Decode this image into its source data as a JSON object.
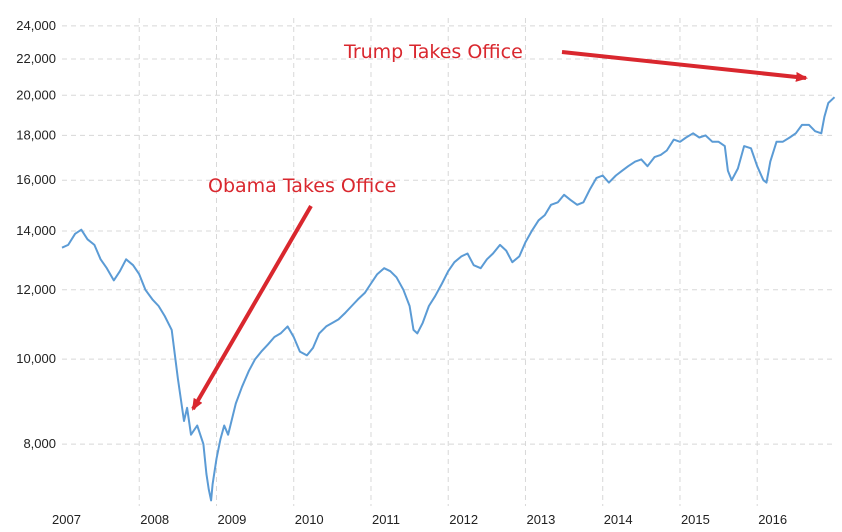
{
  "chart_data": {
    "type": "line",
    "y_scale": "log",
    "ylim": [
      6800,
      24500
    ],
    "xlim": [
      2007.0,
      2017.02
    ],
    "x_tick_labels": [
      "2007",
      "2008",
      "2009",
      "2010",
      "2011",
      "2012",
      "2013",
      "2014",
      "2015",
      "2016"
    ],
    "y_ticks": [
      8000,
      10000,
      12000,
      14000,
      16000,
      18000,
      20000,
      22000,
      24000
    ],
    "y_tick_labels": [
      "8,000",
      "10,000",
      "12,000",
      "14,000",
      "16,000",
      "18,000",
      "20,000",
      "22,000",
      "24,000"
    ],
    "grid": true,
    "colors": {
      "line": "#5b9bd5",
      "annotation": "#d9272e",
      "grid": "#d8d8d8"
    },
    "series": [
      {
        "name": "",
        "points": [
          [
            2007.0,
            13400
          ],
          [
            2007.08,
            13500
          ],
          [
            2007.17,
            13900
          ],
          [
            2007.25,
            14050
          ],
          [
            2007.33,
            13700
          ],
          [
            2007.42,
            13500
          ],
          [
            2007.5,
            13000
          ],
          [
            2007.58,
            12700
          ],
          [
            2007.67,
            12300
          ],
          [
            2007.75,
            12600
          ],
          [
            2007.83,
            13000
          ],
          [
            2007.92,
            12800
          ],
          [
            2008.0,
            12500
          ],
          [
            2008.08,
            12000
          ],
          [
            2008.17,
            11700
          ],
          [
            2008.25,
            11500
          ],
          [
            2008.33,
            11200
          ],
          [
            2008.42,
            10800
          ],
          [
            2008.5,
            9500
          ],
          [
            2008.58,
            8500
          ],
          [
            2008.62,
            8800
          ],
          [
            2008.67,
            8200
          ],
          [
            2008.75,
            8400
          ],
          [
            2008.83,
            8000
          ],
          [
            2008.87,
            7400
          ],
          [
            2008.9,
            7100
          ],
          [
            2008.93,
            6900
          ],
          [
            2008.95,
            7200
          ],
          [
            2009.0,
            7700
          ],
          [
            2009.05,
            8100
          ],
          [
            2009.1,
            8400
          ],
          [
            2009.15,
            8200
          ],
          [
            2009.25,
            8900
          ],
          [
            2009.33,
            9300
          ],
          [
            2009.42,
            9700
          ],
          [
            2009.5,
            10000
          ],
          [
            2009.58,
            10200
          ],
          [
            2009.67,
            10400
          ],
          [
            2009.75,
            10600
          ],
          [
            2009.83,
            10700
          ],
          [
            2009.92,
            10900
          ],
          [
            2010.0,
            10600
          ],
          [
            2010.08,
            10200
          ],
          [
            2010.17,
            10100
          ],
          [
            2010.25,
            10300
          ],
          [
            2010.33,
            10700
          ],
          [
            2010.42,
            10900
          ],
          [
            2010.5,
            11000
          ],
          [
            2010.58,
            11100
          ],
          [
            2010.67,
            11300
          ],
          [
            2010.75,
            11500
          ],
          [
            2010.83,
            11700
          ],
          [
            2010.92,
            11900
          ],
          [
            2011.0,
            12200
          ],
          [
            2011.08,
            12500
          ],
          [
            2011.17,
            12700
          ],
          [
            2011.25,
            12600
          ],
          [
            2011.33,
            12400
          ],
          [
            2011.42,
            12000
          ],
          [
            2011.5,
            11500
          ],
          [
            2011.55,
            10800
          ],
          [
            2011.6,
            10700
          ],
          [
            2011.67,
            11000
          ],
          [
            2011.75,
            11500
          ],
          [
            2011.83,
            11800
          ],
          [
            2011.92,
            12200
          ],
          [
            2012.0,
            12600
          ],
          [
            2012.08,
            12900
          ],
          [
            2012.17,
            13100
          ],
          [
            2012.25,
            13200
          ],
          [
            2012.33,
            12800
          ],
          [
            2012.42,
            12700
          ],
          [
            2012.5,
            13000
          ],
          [
            2012.58,
            13200
          ],
          [
            2012.67,
            13500
          ],
          [
            2012.75,
            13300
          ],
          [
            2012.83,
            12900
          ],
          [
            2012.92,
            13100
          ],
          [
            2013.0,
            13600
          ],
          [
            2013.08,
            14000
          ],
          [
            2013.17,
            14400
          ],
          [
            2013.25,
            14600
          ],
          [
            2013.33,
            15000
          ],
          [
            2013.42,
            15100
          ],
          [
            2013.5,
            15400
          ],
          [
            2013.58,
            15200
          ],
          [
            2013.67,
            15000
          ],
          [
            2013.75,
            15100
          ],
          [
            2013.83,
            15600
          ],
          [
            2013.92,
            16100
          ],
          [
            2014.0,
            16200
          ],
          [
            2014.08,
            15900
          ],
          [
            2014.17,
            16200
          ],
          [
            2014.25,
            16400
          ],
          [
            2014.33,
            16600
          ],
          [
            2014.42,
            16800
          ],
          [
            2014.5,
            16900
          ],
          [
            2014.58,
            16600
          ],
          [
            2014.67,
            17000
          ],
          [
            2014.75,
            17100
          ],
          [
            2014.83,
            17300
          ],
          [
            2014.92,
            17800
          ],
          [
            2015.0,
            17700
          ],
          [
            2015.08,
            17900
          ],
          [
            2015.17,
            18100
          ],
          [
            2015.25,
            17900
          ],
          [
            2015.33,
            18000
          ],
          [
            2015.42,
            17700
          ],
          [
            2015.5,
            17700
          ],
          [
            2015.58,
            17500
          ],
          [
            2015.62,
            16400
          ],
          [
            2015.67,
            16000
          ],
          [
            2015.75,
            16500
          ],
          [
            2015.83,
            17500
          ],
          [
            2015.92,
            17400
          ],
          [
            2016.0,
            16600
          ],
          [
            2016.08,
            16000
          ],
          [
            2016.12,
            15900
          ],
          [
            2016.17,
            16800
          ],
          [
            2016.25,
            17700
          ],
          [
            2016.33,
            17700
          ],
          [
            2016.42,
            17900
          ],
          [
            2016.5,
            18100
          ],
          [
            2016.58,
            18500
          ],
          [
            2016.67,
            18500
          ],
          [
            2016.75,
            18200
          ],
          [
            2016.83,
            18100
          ],
          [
            2016.87,
            18900
          ],
          [
            2016.92,
            19600
          ],
          [
            2017.0,
            19900
          ]
        ]
      }
    ],
    "annotations": [
      {
        "text": "Obama Takes Office"
      },
      {
        "text": "Trump Takes Office"
      }
    ]
  }
}
